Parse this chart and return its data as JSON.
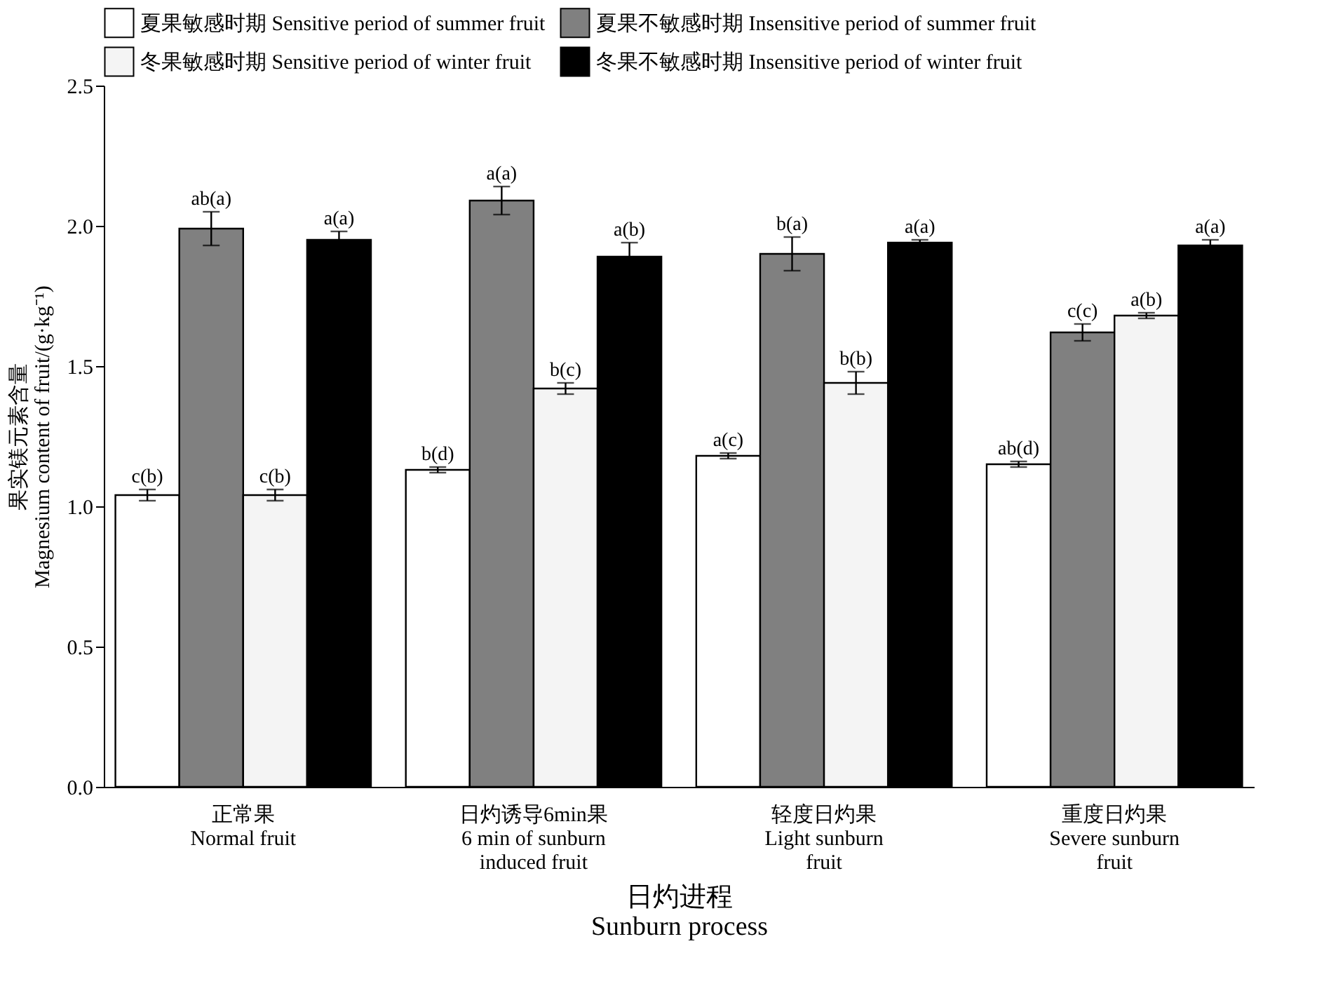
{
  "chart_data": {
    "type": "bar",
    "xlabel": "日灼进程\nSunburn process",
    "ylabel": "果实镁元素含量\nMagnesium content of fruit/(g·kg⁻¹)",
    "categories": [
      "正常果\nNormal fruit",
      "日灼诱导6min果\n6 min of sunburn\ninduced fruit",
      "轻度日灼果\nLight sunburn\nfruit",
      "重度日灼果\nSevere sunburn\nfruit"
    ],
    "series": [
      {
        "name": "夏果敏感时期 Sensitive period of summer fruit",
        "color": "#ffffff",
        "values": [
          1.04,
          1.13,
          1.18,
          1.15
        ],
        "errors": [
          0.02,
          0.01,
          0.01,
          0.01
        ],
        "value_labels": [
          "c(b)",
          "b(d)",
          "a(c)",
          "ab(d)"
        ]
      },
      {
        "name": "夏果不敏感时期 Insensitive period of summer fruit",
        "color": "#808080",
        "values": [
          1.99,
          2.09,
          1.9,
          1.62
        ],
        "errors": [
          0.06,
          0.05,
          0.06,
          0.03
        ],
        "value_labels": [
          "ab(a)",
          "a(a)",
          "b(a)",
          "c(c)"
        ]
      },
      {
        "name": "冬果敏感时期 Sensitive period of winter fruit",
        "color": "#f4f4f4",
        "values": [
          1.04,
          1.42,
          1.44,
          1.68
        ],
        "errors": [
          0.02,
          0.02,
          0.04,
          0.01
        ],
        "value_labels": [
          "c(b)",
          "b(c)",
          "b(b)",
          "a(b)"
        ]
      },
      {
        "name": "冬果不敏感时期 Insensitive period of winter fruit",
        "color": "#000000",
        "values": [
          1.95,
          1.89,
          1.94,
          1.93
        ],
        "errors": [
          0.03,
          0.05,
          0.01,
          0.02
        ],
        "value_labels": [
          "a(a)",
          "a(b)",
          "a(a)",
          "a(a)"
        ]
      }
    ],
    "ylim": [
      0,
      2.5
    ],
    "yticks": [
      {
        "value": 0,
        "label": "0.0"
      },
      0.5,
      {
        "value": 1,
        "label": "1.0"
      },
      1.5,
      {
        "value": 2,
        "label": "2.0"
      },
      2.5
    ],
    "legend": "top"
  }
}
